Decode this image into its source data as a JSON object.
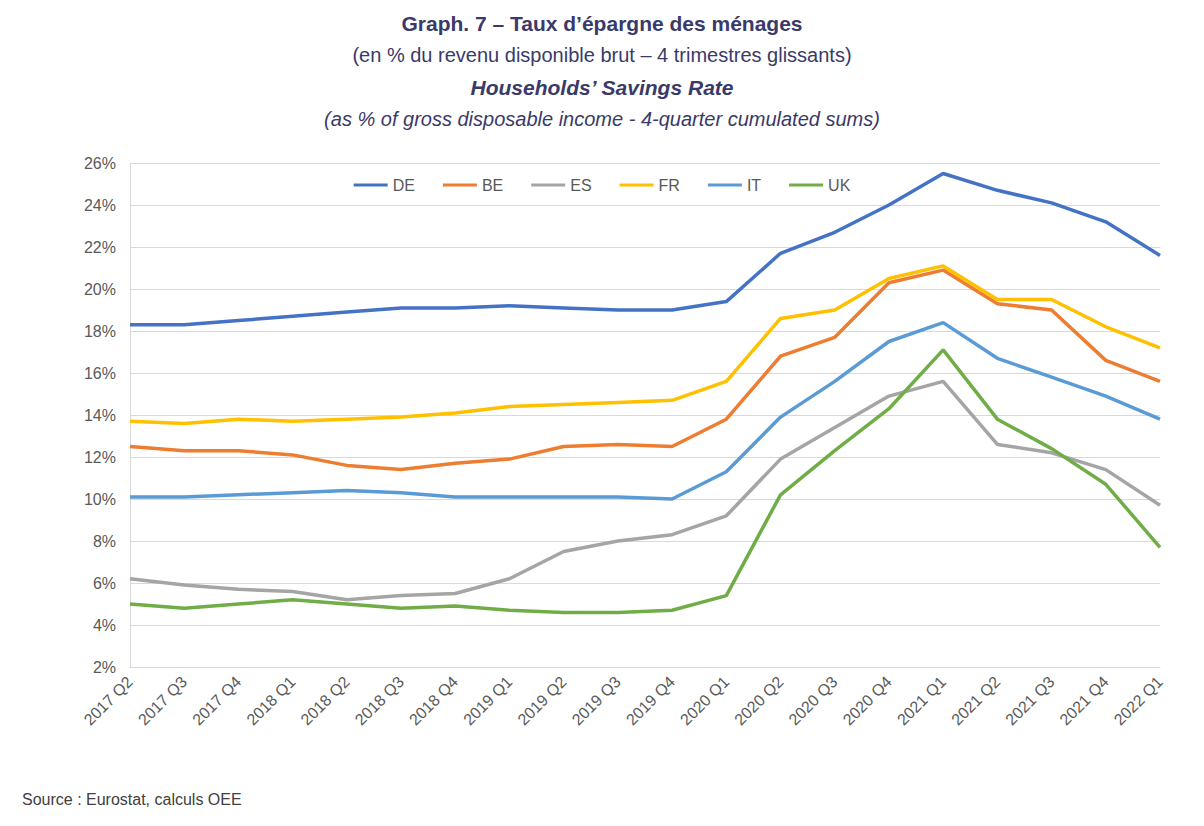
{
  "chart_data": {
    "type": "line",
    "title": "Graph. 7 – Taux d’épargne des ménages",
    "subtitle": "(en % du revenu disponible brut – 4 trimestres glissants)",
    "title_en": "Households’ Savings Rate",
    "subtitle_en": "(as % of gross disposable income - 4-quarter cumulated sums)",
    "source": "Source : Eurostat, calculs OEE",
    "categories": [
      "2017 Q2",
      "2017 Q3",
      "2017 Q4",
      "2018 Q1",
      "2018 Q2",
      "2018 Q3",
      "2018 Q4",
      "2019 Q1",
      "2019 Q2",
      "2019 Q3",
      "2019 Q4",
      "2020 Q1",
      "2020 Q2",
      "2020 Q3",
      "2020 Q4",
      "2021 Q1",
      "2021 Q2",
      "2021 Q3",
      "2021 Q4",
      "2022 Q1"
    ],
    "series": [
      {
        "name": "DE",
        "color": "#4472c4",
        "values": [
          18.3,
          18.3,
          18.5,
          18.7,
          18.9,
          19.1,
          19.1,
          19.2,
          19.1,
          19.0,
          19.0,
          19.4,
          21.7,
          22.7,
          24.0,
          25.5,
          24.7,
          24.1,
          23.2,
          21.6
        ]
      },
      {
        "name": "BE",
        "color": "#ed7d31",
        "values": [
          12.5,
          12.3,
          12.3,
          12.1,
          11.6,
          11.4,
          11.7,
          11.9,
          12.5,
          12.6,
          12.5,
          13.8,
          16.8,
          17.7,
          20.3,
          20.9,
          19.3,
          19.0,
          16.6,
          15.6
        ]
      },
      {
        "name": "ES",
        "color": "#a5a5a5",
        "values": [
          6.2,
          5.9,
          5.7,
          5.6,
          5.2,
          5.4,
          5.5,
          6.2,
          7.5,
          8.0,
          8.3,
          9.2,
          11.9,
          13.4,
          14.9,
          15.6,
          12.6,
          12.2,
          11.4,
          9.7
        ]
      },
      {
        "name": "FR",
        "color": "#ffc000",
        "values": [
          13.7,
          13.6,
          13.8,
          13.7,
          13.8,
          13.9,
          14.1,
          14.4,
          14.5,
          14.6,
          14.7,
          15.6,
          18.6,
          19.0,
          20.5,
          21.1,
          19.5,
          19.5,
          18.2,
          17.2
        ]
      },
      {
        "name": "IT",
        "color": "#5b9bd5",
        "values": [
          10.1,
          10.1,
          10.2,
          10.3,
          10.4,
          10.3,
          10.1,
          10.1,
          10.1,
          10.1,
          10.0,
          11.3,
          13.9,
          15.6,
          17.5,
          18.4,
          16.7,
          15.8,
          14.9,
          13.8
        ]
      },
      {
        "name": "UK",
        "color": "#70ad47",
        "values": [
          5.0,
          4.8,
          5.0,
          5.2,
          5.0,
          4.8,
          4.9,
          4.7,
          4.6,
          4.6,
          4.7,
          5.4,
          10.2,
          12.3,
          14.3,
          17.1,
          13.8,
          12.4,
          10.7,
          7.7
        ]
      }
    ],
    "ylim": [
      2,
      26
    ],
    "yticks": [
      {
        "value": 2,
        "label": "2%"
      },
      {
        "value": 4,
        "label": "4%"
      },
      {
        "value": 6,
        "label": "6%"
      },
      {
        "value": 8,
        "label": "8%"
      },
      {
        "value": 10,
        "label": "10%"
      },
      {
        "value": 12,
        "label": "12%"
      },
      {
        "value": 14,
        "label": "14%"
      },
      {
        "value": 16,
        "label": "16%"
      },
      {
        "value": 18,
        "label": "18%"
      },
      {
        "value": 20,
        "label": "20%"
      },
      {
        "value": 22,
        "label": "22%"
      },
      {
        "value": 24,
        "label": "24%"
      },
      {
        "value": 26,
        "label": "26%"
      }
    ],
    "grid": true,
    "legend": "top"
  }
}
